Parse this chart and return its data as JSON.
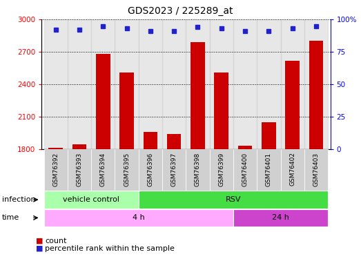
{
  "title": "GDS2023 / 225289_at",
  "samples": [
    "GSM76392",
    "GSM76393",
    "GSM76394",
    "GSM76395",
    "GSM76396",
    "GSM76397",
    "GSM76398",
    "GSM76399",
    "GSM76400",
    "GSM76401",
    "GSM76402",
    "GSM76403"
  ],
  "counts": [
    1810,
    1840,
    2680,
    2510,
    1960,
    1940,
    2790,
    2510,
    1830,
    2050,
    2620,
    2800
  ],
  "percentile_ranks": [
    92,
    92,
    95,
    93,
    91,
    91,
    94,
    93,
    91,
    91,
    93,
    95
  ],
  "ylim_left": [
    1800,
    3000
  ],
  "ylim_right": [
    0,
    100
  ],
  "yticks_left": [
    1800,
    2100,
    2400,
    2700,
    3000
  ],
  "yticks_right": [
    0,
    25,
    50,
    75,
    100
  ],
  "bar_color": "#cc0000",
  "dot_color": "#2222cc",
  "inf_groups": [
    {
      "label": "vehicle control",
      "start": 0,
      "end": 3,
      "color": "#aaffaa"
    },
    {
      "label": "RSV",
      "start": 4,
      "end": 11,
      "color": "#44dd44"
    }
  ],
  "time_groups": [
    {
      "label": "4 h",
      "start": 0,
      "end": 7,
      "color": "#ffaaff"
    },
    {
      "label": "24 h",
      "start": 8,
      "end": 11,
      "color": "#cc44cc"
    }
  ],
  "row_label_infection": "infection",
  "row_label_time": "time",
  "legend_count": "count",
  "legend_percentile": "percentile rank within the sample",
  "col_bg": "#d0d0d0"
}
